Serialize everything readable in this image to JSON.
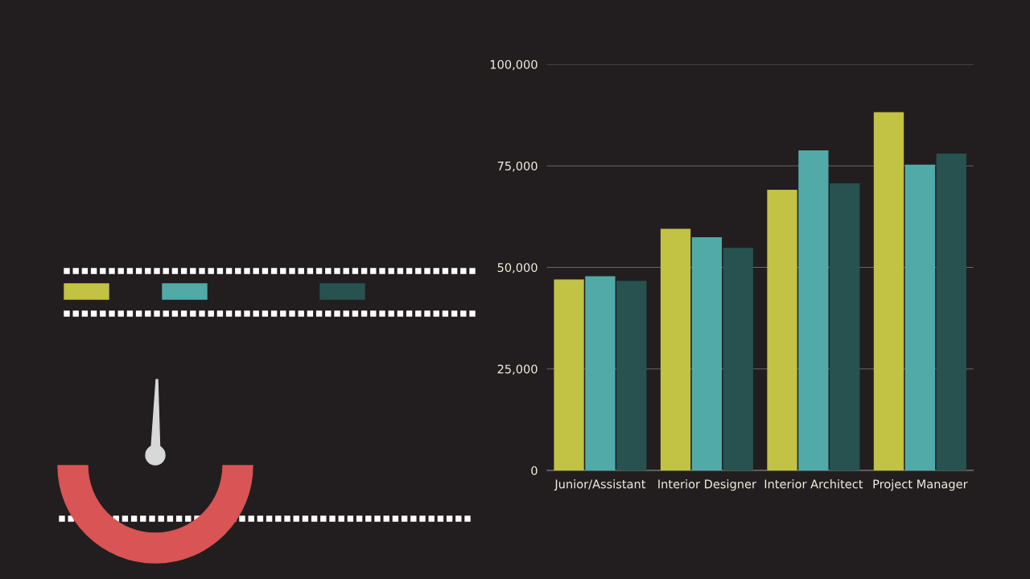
{
  "chart_data": {
    "type": "bar",
    "categories": [
      "Junior/Assistant",
      "Interior Designer",
      "Interior Architect",
      "Project Manager"
    ],
    "series": [
      {
        "color": "#c2c244",
        "values": [
          47000,
          59500,
          69100,
          88200
        ]
      },
      {
        "color": "#52aaa8",
        "values": [
          47800,
          57400,
          78800,
          75300
        ]
      },
      {
        "color": "#275250",
        "values": [
          46700,
          54800,
          70700,
          78000
        ]
      }
    ],
    "ylim": [
      0,
      100000
    ],
    "yticks": [
      {
        "value": 0,
        "label": "0"
      },
      {
        "value": 25000,
        "label": "25,000"
      },
      {
        "value": 50000,
        "label": "50,000"
      },
      {
        "value": 75000,
        "label": "75,000"
      },
      {
        "value": 100000,
        "label": "100,000"
      }
    ],
    "grid": "y"
  }
}
